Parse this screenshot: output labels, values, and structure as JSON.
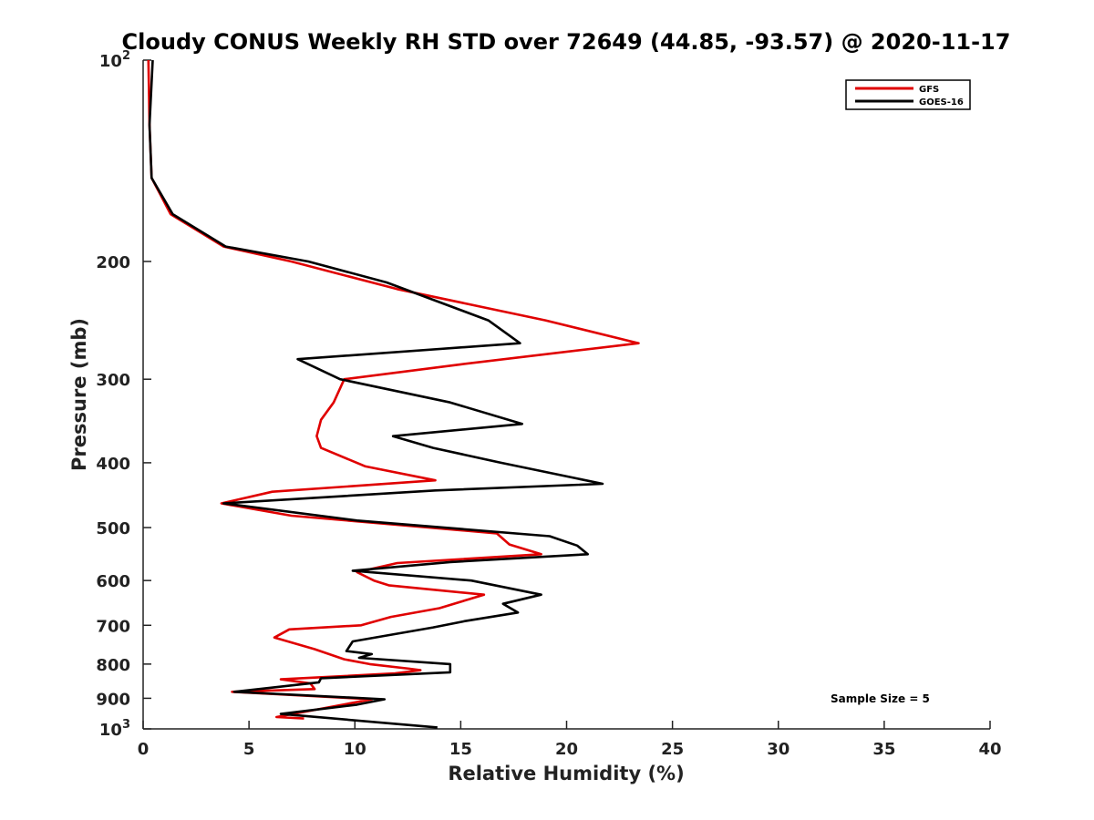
{
  "chart_data": {
    "type": "line",
    "title": "Cloudy CONUS Weekly RH STD over 72649 (44.85, -93.57) @ 2020-11-17",
    "xlabel": "Relative Humidity (%)",
    "ylabel": "Pressure (mb)",
    "xlim": [
      0,
      40
    ],
    "ylim": [
      100,
      1000
    ],
    "y_scale": "log",
    "y_reversed": true,
    "xticks": [
      0,
      5,
      10,
      15,
      20,
      25,
      30,
      35,
      40
    ],
    "yticks": [
      {
        "value": 100,
        "base": "10",
        "exp": "2"
      },
      {
        "value": 200,
        "label": "200"
      },
      {
        "value": 300,
        "label": "300"
      },
      {
        "value": 400,
        "label": "400"
      },
      {
        "value": 500,
        "label": "500"
      },
      {
        "value": 600,
        "label": "600"
      },
      {
        "value": 700,
        "label": "700"
      },
      {
        "value": 800,
        "label": "800"
      },
      {
        "value": 900,
        "label": "900"
      },
      {
        "value": 1000,
        "base": "10",
        "exp": "3"
      }
    ],
    "grid": false,
    "legend": "top-right",
    "annotation": "Sample Size = 5",
    "series": [
      {
        "name": "GFS",
        "color": "#e00000",
        "points": [
          [
            0.25,
            100
          ],
          [
            0.3,
            125
          ],
          [
            0.4,
            150
          ],
          [
            1.3,
            170
          ],
          [
            3.8,
            190
          ],
          [
            7.0,
            200
          ],
          [
            12.0,
            220
          ],
          [
            19.0,
            245
          ],
          [
            23.4,
            265
          ],
          [
            15.0,
            285
          ],
          [
            9.5,
            300
          ],
          [
            9.0,
            325
          ],
          [
            8.4,
            345
          ],
          [
            8.2,
            365
          ],
          [
            8.4,
            380
          ],
          [
            10.5,
            405
          ],
          [
            13.8,
            425
          ],
          [
            6.1,
            442
          ],
          [
            3.7,
            460
          ],
          [
            7.0,
            480
          ],
          [
            16.7,
            510
          ],
          [
            17.3,
            530
          ],
          [
            18.8,
            548
          ],
          [
            12.0,
            565
          ],
          [
            10.1,
            583
          ],
          [
            10.9,
            600
          ],
          [
            11.6,
            610
          ],
          [
            16.1,
            630
          ],
          [
            14.0,
            660
          ],
          [
            11.7,
            680
          ],
          [
            10.3,
            700
          ],
          [
            6.9,
            710
          ],
          [
            6.2,
            730
          ],
          [
            8.1,
            760
          ],
          [
            9.5,
            787
          ],
          [
            10.7,
            800
          ],
          [
            12.6,
            813
          ],
          [
            13.1,
            817
          ],
          [
            11.9,
            826
          ],
          [
            6.5,
            843
          ],
          [
            7.9,
            855
          ],
          [
            8.1,
            872
          ],
          [
            4.2,
            880
          ],
          [
            10.8,
            903
          ],
          [
            6.3,
            960
          ],
          [
            7.6,
            965
          ]
        ]
      },
      {
        "name": "GOES-16",
        "color": "#000000",
        "points": [
          [
            0.45,
            100
          ],
          [
            0.3,
            125
          ],
          [
            0.4,
            150
          ],
          [
            1.4,
            170
          ],
          [
            3.9,
            190
          ],
          [
            7.8,
            200
          ],
          [
            11.5,
            215
          ],
          [
            16.3,
            245
          ],
          [
            17.8,
            265
          ],
          [
            7.3,
            280
          ],
          [
            9.3,
            300
          ],
          [
            14.5,
            325
          ],
          [
            17.9,
            350
          ],
          [
            11.8,
            365
          ],
          [
            13.7,
            380
          ],
          [
            16.9,
            400
          ],
          [
            21.7,
            430
          ],
          [
            13.8,
            440
          ],
          [
            3.8,
            460
          ],
          [
            10.1,
            488
          ],
          [
            19.2,
            515
          ],
          [
            20.5,
            532
          ],
          [
            21.0,
            548
          ],
          [
            14.5,
            563
          ],
          [
            9.9,
            580
          ],
          [
            15.5,
            600
          ],
          [
            18.8,
            630
          ],
          [
            17.0,
            650
          ],
          [
            17.7,
            670
          ],
          [
            15.2,
            690
          ],
          [
            13.7,
            705
          ],
          [
            9.9,
            740
          ],
          [
            9.6,
            765
          ],
          [
            10.8,
            773
          ],
          [
            10.2,
            783
          ],
          [
            14.5,
            800
          ],
          [
            14.5,
            823
          ],
          [
            8.4,
            840
          ],
          [
            8.3,
            852
          ],
          [
            4.3,
            880
          ],
          [
            11.4,
            903
          ],
          [
            10.1,
            920
          ],
          [
            6.5,
            950
          ],
          [
            13.9,
            995
          ]
        ]
      }
    ]
  }
}
